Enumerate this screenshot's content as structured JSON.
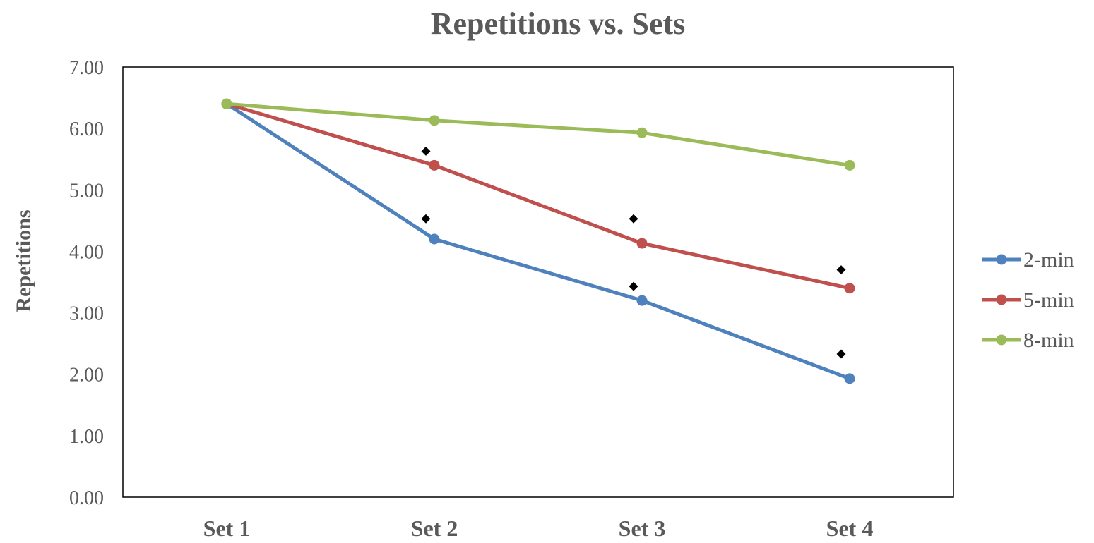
{
  "chart_data": {
    "type": "line",
    "title": "Repetitions vs. Sets",
    "xlabel": "",
    "ylabel": "Repetitions",
    "categories": [
      "Set 1",
      "Set 2",
      "Set 3",
      "Set 4"
    ],
    "ylim": [
      0,
      7
    ],
    "ytick_values": [
      0,
      1,
      2,
      3,
      4,
      5,
      6,
      7
    ],
    "ytick_labels": [
      "0.00",
      "1.00",
      "2.00",
      "3.00",
      "4.00",
      "5.00",
      "6.00",
      "7.00"
    ],
    "grid": false,
    "legend": "right",
    "series": [
      {
        "name": "2-min",
        "color": "#4F81BD",
        "values": [
          6.4,
          4.2,
          3.2,
          1.93
        ]
      },
      {
        "name": "5-min",
        "color": "#C0504D",
        "values": [
          6.4,
          5.4,
          4.13,
          3.4
        ]
      },
      {
        "name": "8-min",
        "color": "#9BBB59",
        "values": [
          6.4,
          6.13,
          5.93,
          5.4
        ]
      }
    ],
    "significance_markers": {
      "symbol": "diamond",
      "color": "#000000",
      "points": [
        {
          "category": "Set 2",
          "value": 5.63
        },
        {
          "category": "Set 2",
          "value": 4.53
        },
        {
          "category": "Set 3",
          "value": 4.53
        },
        {
          "category": "Set 3",
          "value": 3.43
        },
        {
          "category": "Set 4",
          "value": 3.7
        },
        {
          "category": "Set 4",
          "value": 2.33
        }
      ]
    }
  }
}
